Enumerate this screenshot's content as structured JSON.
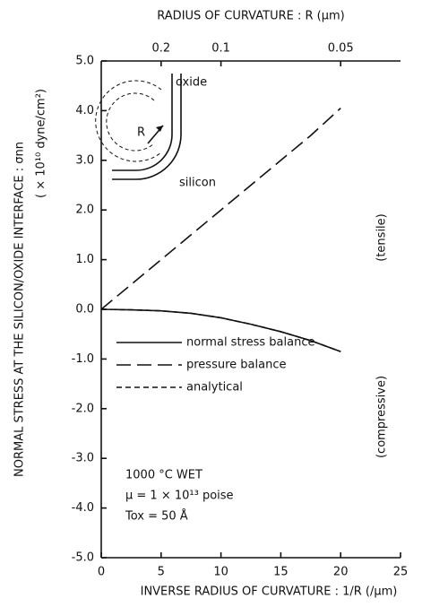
{
  "chart_data": {
    "type": "line",
    "xlabel": "INVERSE RADIUS OF CURVATURE : 1/R (/μm)",
    "x2label": "RADIUS OF CURVATURE : R (μm)",
    "ylabel": "NORMAL STRESS AT THE SILICON/OXIDE INTERFACE : σnn",
    "ylabel2": "( × 10¹⁰ dyne/cm²)",
    "x": [
      0,
      2.5,
      5,
      7.5,
      10,
      12.5,
      15,
      17.5,
      20
    ],
    "series": [
      {
        "name": "normal stress balance",
        "color": "#111111",
        "dash": "solid",
        "values": [
          0,
          -0.01,
          -0.03,
          -0.08,
          -0.17,
          -0.3,
          -0.45,
          -0.63,
          -0.85
        ]
      },
      {
        "name": "pressure balance",
        "color": "#111111",
        "dash": "long",
        "values": [
          0,
          0.5,
          1.0,
          1.5,
          2.0,
          2.5,
          3.0,
          3.5,
          4.05
        ]
      },
      {
        "name": "analytical",
        "color": "#111111",
        "dash": "short",
        "values": [
          0,
          -0.01,
          -0.03,
          -0.08,
          -0.17,
          -0.3,
          -0.45,
          -0.63,
          -0.85
        ]
      }
    ],
    "xlim": [
      0,
      25
    ],
    "xticks": [
      0,
      5,
      10,
      15,
      20,
      25
    ],
    "x2ticks": [
      {
        "value": 5,
        "label": "0.2"
      },
      {
        "value": 10,
        "label": "0.1"
      },
      {
        "value": 20,
        "label": "0.05"
      }
    ],
    "ylim": [
      -5,
      5
    ],
    "yticks": [
      {
        "value": 5,
        "label": "5.0"
      },
      {
        "value": 4,
        "label": "4.0"
      },
      {
        "value": 3,
        "label": "3.0"
      },
      {
        "value": 2,
        "label": "2.0"
      },
      {
        "value": 1,
        "label": "1.0"
      },
      {
        "value": 0,
        "label": "0.0"
      },
      {
        "value": -1,
        "label": "-1.0"
      },
      {
        "value": -2,
        "label": "-2.0"
      },
      {
        "value": -3,
        "label": "-3.0"
      },
      {
        "value": -4,
        "label": "-4.0"
      },
      {
        "value": -5,
        "label": "-5.0"
      }
    ],
    "annotations": [
      "(tensile)",
      "(compressive)",
      "1000 °C WET",
      "μ = 1 × 10¹³ poise",
      "Tox = 50 Å"
    ],
    "inset_labels": [
      "oxide",
      "R",
      "silicon"
    ]
  }
}
